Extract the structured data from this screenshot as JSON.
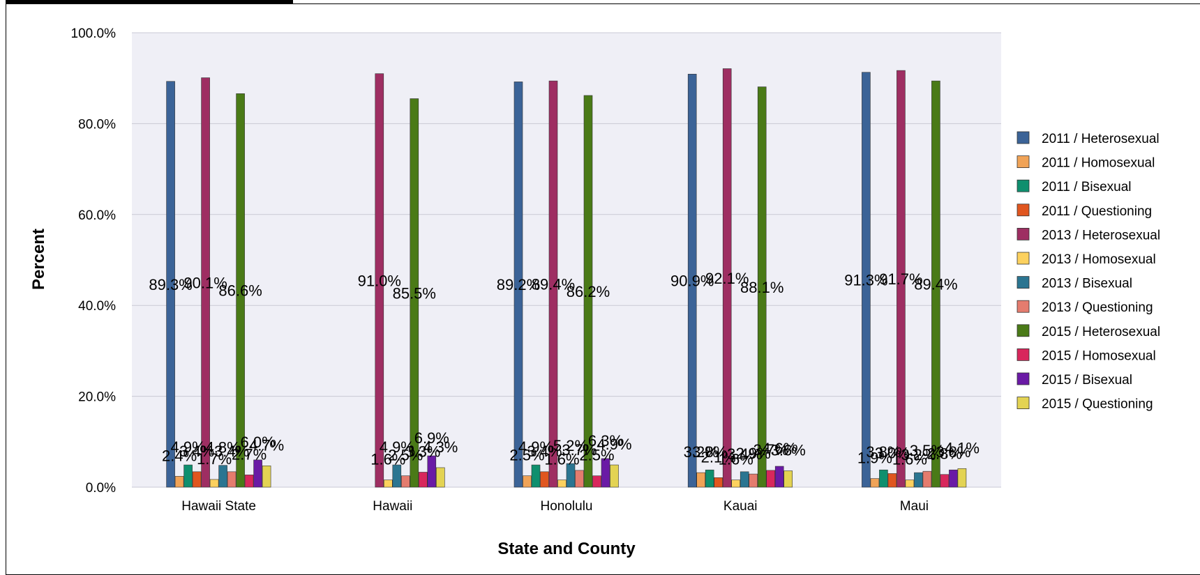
{
  "chart_data": {
    "type": "bar",
    "title": "",
    "xlabel": "State and County",
    "ylabel": "Percent",
    "ylim": [
      0,
      100
    ],
    "yticks": [
      "0.0%",
      "20.0%",
      "40.0%",
      "60.0%",
      "80.0%",
      "100.0%"
    ],
    "grid": true,
    "legend_position": "right",
    "categories": [
      "Hawaii State",
      "Hawaii",
      "Honolulu",
      "Kauai",
      "Maui"
    ],
    "series": [
      {
        "name": "2011 / Heterosexual",
        "color": "#3b6397",
        "values": [
          89.3,
          null,
          89.2,
          90.9,
          91.3
        ]
      },
      {
        "name": "2011 / Homosexual",
        "color": "#f0a357",
        "values": [
          2.4,
          null,
          2.5,
          3.2,
          1.9
        ]
      },
      {
        "name": "2011 / Bisexual",
        "color": "#0f8f6e",
        "values": [
          4.9,
          null,
          4.9,
          3.8,
          3.8
        ]
      },
      {
        "name": "2011 / Questioning",
        "color": "#e0561f",
        "values": [
          3.4,
          null,
          3.4,
          2.1,
          3.0
        ]
      },
      {
        "name": "2013 / Heterosexual",
        "color": "#9e2e62",
        "values": [
          90.1,
          91.0,
          89.4,
          92.1,
          91.7
        ]
      },
      {
        "name": "2013 / Homosexual",
        "color": "#fcd15e",
        "values": [
          1.7,
          1.6,
          1.6,
          1.6,
          1.6
        ]
      },
      {
        "name": "2013 / Bisexual",
        "color": "#2b7591",
        "values": [
          4.8,
          4.9,
          5.2,
          3.4,
          3.2
        ]
      },
      {
        "name": "2013 / Questioning",
        "color": "#e47c6e",
        "values": [
          3.4,
          2.5,
          3.7,
          2.9,
          3.5
        ]
      },
      {
        "name": "2015 / Heterosexual",
        "color": "#4a7a17",
        "values": [
          86.6,
          85.5,
          86.2,
          88.1,
          89.4
        ]
      },
      {
        "name": "2015 / Homosexual",
        "color": "#d8275c",
        "values": [
          2.7,
          3.3,
          2.5,
          3.7,
          2.8
        ]
      },
      {
        "name": "2015 / Bisexual",
        "color": "#6a1aa5",
        "values": [
          6.0,
          6.9,
          6.3,
          4.6,
          3.8
        ]
      },
      {
        "name": "2015 / Questioning",
        "color": "#e3d353",
        "values": [
          4.7,
          4.3,
          4.9,
          3.6,
          4.1
        ]
      }
    ]
  }
}
